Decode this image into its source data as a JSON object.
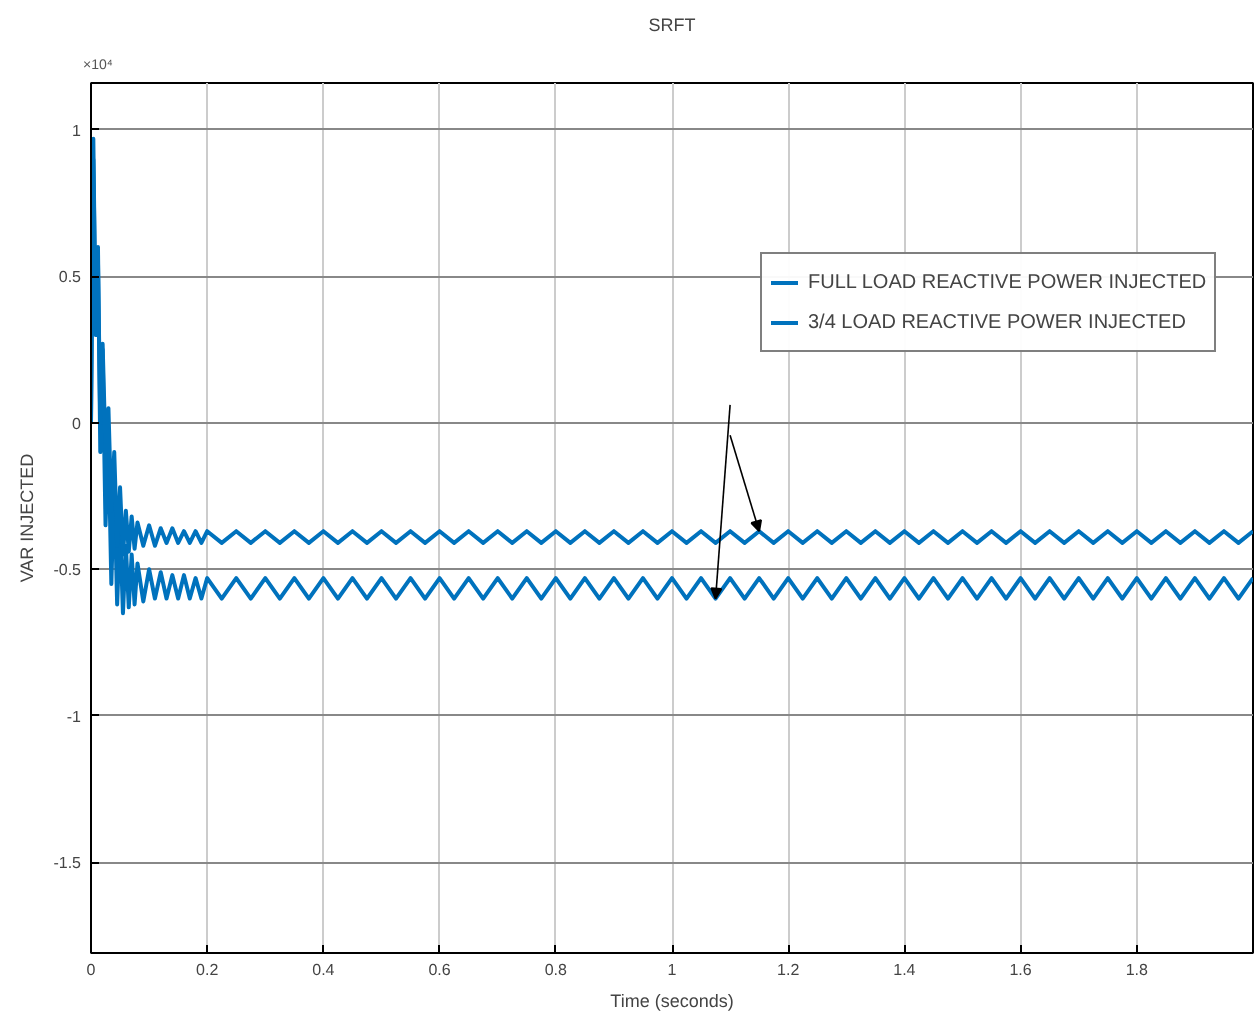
{
  "chart_data": {
    "type": "line",
    "title": "SRFT",
    "xlabel": "Time (seconds)",
    "ylabel": "VAR INJECTED",
    "annotations": [
      "×10⁴"
    ],
    "x": [
      0,
      0.004,
      0.008,
      0.012,
      0.016,
      0.02,
      0.025,
      0.03,
      0.035,
      0.04,
      0.045,
      0.05,
      0.055,
      0.06,
      0.065,
      0.07,
      0.075,
      0.08,
      0.09,
      0.1,
      0.11,
      0.12,
      0.13,
      0.14,
      0.15,
      0.16,
      0.17,
      0.18,
      0.19,
      0.2,
      0.225,
      0.25,
      0.275,
      0.3,
      0.325,
      0.35,
      0.375,
      0.4,
      0.425,
      0.45,
      0.475,
      0.5,
      0.525,
      0.55,
      0.575,
      0.6,
      0.625,
      0.65,
      0.675,
      0.7,
      0.725,
      0.75,
      0.775,
      0.8,
      0.825,
      0.85,
      0.875,
      0.9,
      0.925,
      0.95,
      0.975,
      1.0,
      1.025,
      1.05,
      1.075,
      1.1,
      1.125,
      1.15,
      1.175,
      1.2,
      1.225,
      1.25,
      1.275,
      1.3,
      1.325,
      1.35,
      1.375,
      1.4,
      1.425,
      1.45,
      1.475,
      1.5,
      1.525,
      1.55,
      1.575,
      1.6,
      1.625,
      1.65,
      1.675,
      1.7,
      1.725,
      1.75,
      1.775,
      1.8,
      1.825,
      1.85,
      1.875,
      1.9,
      1.925,
      1.95,
      1.975,
      2.0
    ],
    "series": [
      {
        "name": "FULL LOAD REACTIVE POWER INJECTED",
        "color": "#0072bd",
        "values": [
          0,
          0.97,
          0.3,
          0.6,
          -0.1,
          0.25,
          -0.35,
          -0.05,
          -0.55,
          -0.2,
          -0.62,
          -0.35,
          -0.65,
          -0.42,
          -0.63,
          -0.45,
          -0.62,
          -0.48,
          -0.61,
          -0.5,
          -0.6,
          -0.51,
          -0.6,
          -0.52,
          -0.6,
          -0.52,
          -0.6,
          -0.53,
          -0.6,
          -0.53,
          -0.6,
          -0.53,
          -0.6,
          -0.53,
          -0.6,
          -0.53,
          -0.6,
          -0.53,
          -0.6,
          -0.53,
          -0.6,
          -0.53,
          -0.6,
          -0.53,
          -0.6,
          -0.53,
          -0.6,
          -0.53,
          -0.6,
          -0.53,
          -0.6,
          -0.53,
          -0.6,
          -0.53,
          -0.6,
          -0.53,
          -0.6,
          -0.53,
          -0.6,
          -0.53,
          -0.6,
          -0.53,
          -0.6,
          -0.53,
          -0.6,
          -0.53,
          -0.6,
          -0.53,
          -0.6,
          -0.53,
          -0.6,
          -0.53,
          -0.6,
          -0.53,
          -0.6,
          -0.53,
          -0.6,
          -0.53,
          -0.6,
          -0.53,
          -0.6,
          -0.53,
          -0.6,
          -0.53,
          -0.6,
          -0.53,
          -0.6,
          -0.53,
          -0.6,
          -0.53,
          -0.6,
          -0.53,
          -0.6,
          -0.53,
          -0.6,
          -0.53,
          -0.6,
          -0.53,
          -0.6,
          -0.53,
          -0.6,
          -0.53
        ]
      },
      {
        "name": "3/4 LOAD REACTIVE POWER INJECTED",
        "color": "#0072bd",
        "values": [
          0,
          0.9,
          0.35,
          0.55,
          0,
          0.27,
          -0.1,
          0.05,
          -0.3,
          -0.1,
          -0.42,
          -0.22,
          -0.45,
          -0.3,
          -0.44,
          -0.32,
          -0.43,
          -0.34,
          -0.42,
          -0.35,
          -0.42,
          -0.36,
          -0.41,
          -0.36,
          -0.41,
          -0.37,
          -0.41,
          -0.37,
          -0.41,
          -0.37,
          -0.41,
          -0.37,
          -0.41,
          -0.37,
          -0.41,
          -0.37,
          -0.41,
          -0.37,
          -0.41,
          -0.37,
          -0.41,
          -0.37,
          -0.41,
          -0.37,
          -0.41,
          -0.37,
          -0.41,
          -0.37,
          -0.41,
          -0.37,
          -0.41,
          -0.37,
          -0.41,
          -0.37,
          -0.41,
          -0.37,
          -0.41,
          -0.37,
          -0.41,
          -0.37,
          -0.41,
          -0.37,
          -0.41,
          -0.37,
          -0.41,
          -0.37,
          -0.41,
          -0.37,
          -0.41,
          -0.37,
          -0.41,
          -0.37,
          -0.41,
          -0.37,
          -0.41,
          -0.37,
          -0.41,
          -0.37,
          -0.41,
          -0.37,
          -0.41,
          -0.37,
          -0.41,
          -0.37,
          -0.41,
          -0.37,
          -0.41,
          -0.37,
          -0.41,
          -0.37,
          -0.41,
          -0.37,
          -0.41,
          -0.37,
          -0.41,
          -0.37,
          -0.41,
          -0.37,
          -0.41,
          -0.37,
          -0.41,
          -0.37
        ]
      }
    ],
    "xlim": [
      0,
      2
    ],
    "xticks": [
      0,
      0.2,
      0.4,
      0.6,
      0.8,
      1,
      1.2,
      1.4,
      1.6,
      1.8
    ],
    "ylim": [
      -1.81,
      1.16
    ],
    "yticks": [
      -1.5,
      -1,
      -0.5,
      0,
      0.5,
      1
    ],
    "grid": true,
    "legend": "right",
    "line_style": "solid",
    "marker": "none"
  }
}
